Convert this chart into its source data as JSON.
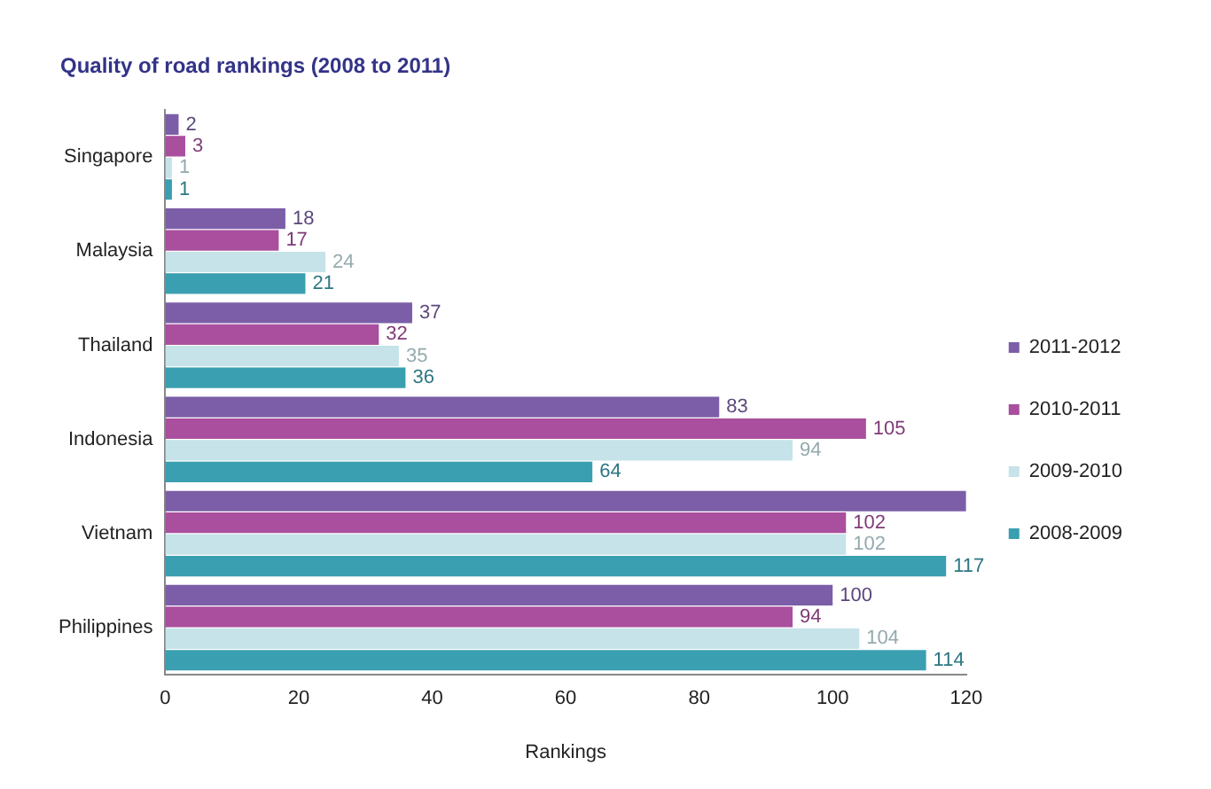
{
  "chart_data": {
    "type": "bar",
    "orientation": "horizontal",
    "title": "Quality of road rankings (2008 to 2011)",
    "xlabel": "Rankings",
    "categories": [
      "Singapore",
      "Malaysia",
      "Thailand",
      "Indonesia",
      "Vietnam",
      "Philippines"
    ],
    "series": [
      {
        "name": "2011-2012",
        "color": "#7b5ea7",
        "values": [
          2,
          18,
          37,
          83,
          120,
          100
        ],
        "value_labels": [
          "2",
          "18",
          "37",
          "83",
          null,
          "100"
        ]
      },
      {
        "name": "2010-2011",
        "color": "#a94f9e",
        "values": [
          3,
          17,
          32,
          105,
          102,
          94
        ],
        "value_labels": [
          "3",
          "17",
          "32",
          "105",
          "102",
          "94"
        ]
      },
      {
        "name": "2009-2010",
        "color": "#c5e3e8",
        "values": [
          1,
          24,
          35,
          94,
          102,
          104
        ],
        "value_labels": [
          "1",
          "24",
          "35",
          "94",
          "102",
          "104"
        ]
      },
      {
        "name": "2008-2009",
        "color": "#3a9fb0",
        "values": [
          1,
          21,
          36,
          64,
          117,
          114
        ],
        "value_labels": [
          "1",
          "21",
          "36",
          "64",
          "117",
          "114"
        ]
      }
    ],
    "xlim": [
      0,
      120
    ],
    "xticks": [
      0,
      20,
      40,
      60,
      80,
      100,
      120
    ],
    "grid": false,
    "legend": "right"
  }
}
